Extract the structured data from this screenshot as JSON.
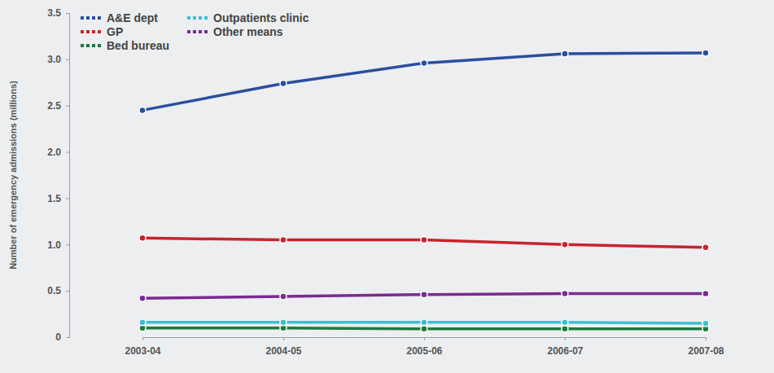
{
  "chart_data": {
    "type": "line",
    "y_label": "Number of emergency admissions (millions)",
    "categories": [
      "2003-04",
      "2004-05",
      "2005-06",
      "2006-07",
      "2007-08"
    ],
    "series": [
      {
        "name": "A&E dept",
        "color": "#2b4f9e",
        "values": [
          2.45,
          2.74,
          2.96,
          3.06,
          3.07
        ]
      },
      {
        "name": "GP",
        "color": "#c8232c",
        "values": [
          1.07,
          1.05,
          1.05,
          1.0,
          0.97
        ]
      },
      {
        "name": "Bed bureau",
        "color": "#1d7a3c",
        "values": [
          0.1,
          0.1,
          0.09,
          0.09,
          0.09
        ]
      },
      {
        "name": "Outpatients clinic",
        "color": "#3fbdd2",
        "values": [
          0.16,
          0.16,
          0.16,
          0.16,
          0.15
        ]
      },
      {
        "name": "Other means",
        "color": "#7b2a90",
        "values": [
          0.42,
          0.44,
          0.46,
          0.47,
          0.47
        ]
      }
    ],
    "ylim": [
      0,
      3.5
    ],
    "yticks": [
      0,
      0.5,
      {
        "value": 1,
        "label": "1.0"
      },
      1.5,
      {
        "value": 2,
        "label": "2.0"
      },
      2.5,
      {
        "value": 3,
        "label": "3.0"
      },
      3.5
    ],
    "grid": false,
    "legend": "upper left",
    "marker": "circle",
    "line_style": "solid"
  }
}
